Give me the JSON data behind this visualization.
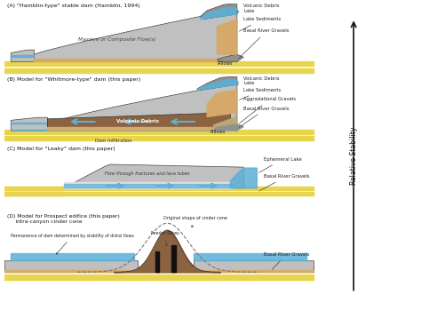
{
  "bg_color": "#ffffff",
  "panel_labels": [
    "(A) \"Hamblin-type\" stable dam (Hamblin, 1994)",
    "(B) Model for \"Whitmore-type\" dam (this paper)",
    "(C) Model for \"Leaky\" dam (this paper)",
    "(D) Model for Prospect edifice (this paper)\n     intra-canyon cinder cone"
  ],
  "right_label": "Relative Stability",
  "colors": {
    "yellow": "#e8d44d",
    "blue": "#5bafd6",
    "light_gray": "#c0c0c0",
    "dark_gray": "#909090",
    "tan": "#d4a96a",
    "brown": "#8b6340",
    "gravel_spotted": "#b8a878",
    "outline": "#444444",
    "white": "#ffffff"
  }
}
